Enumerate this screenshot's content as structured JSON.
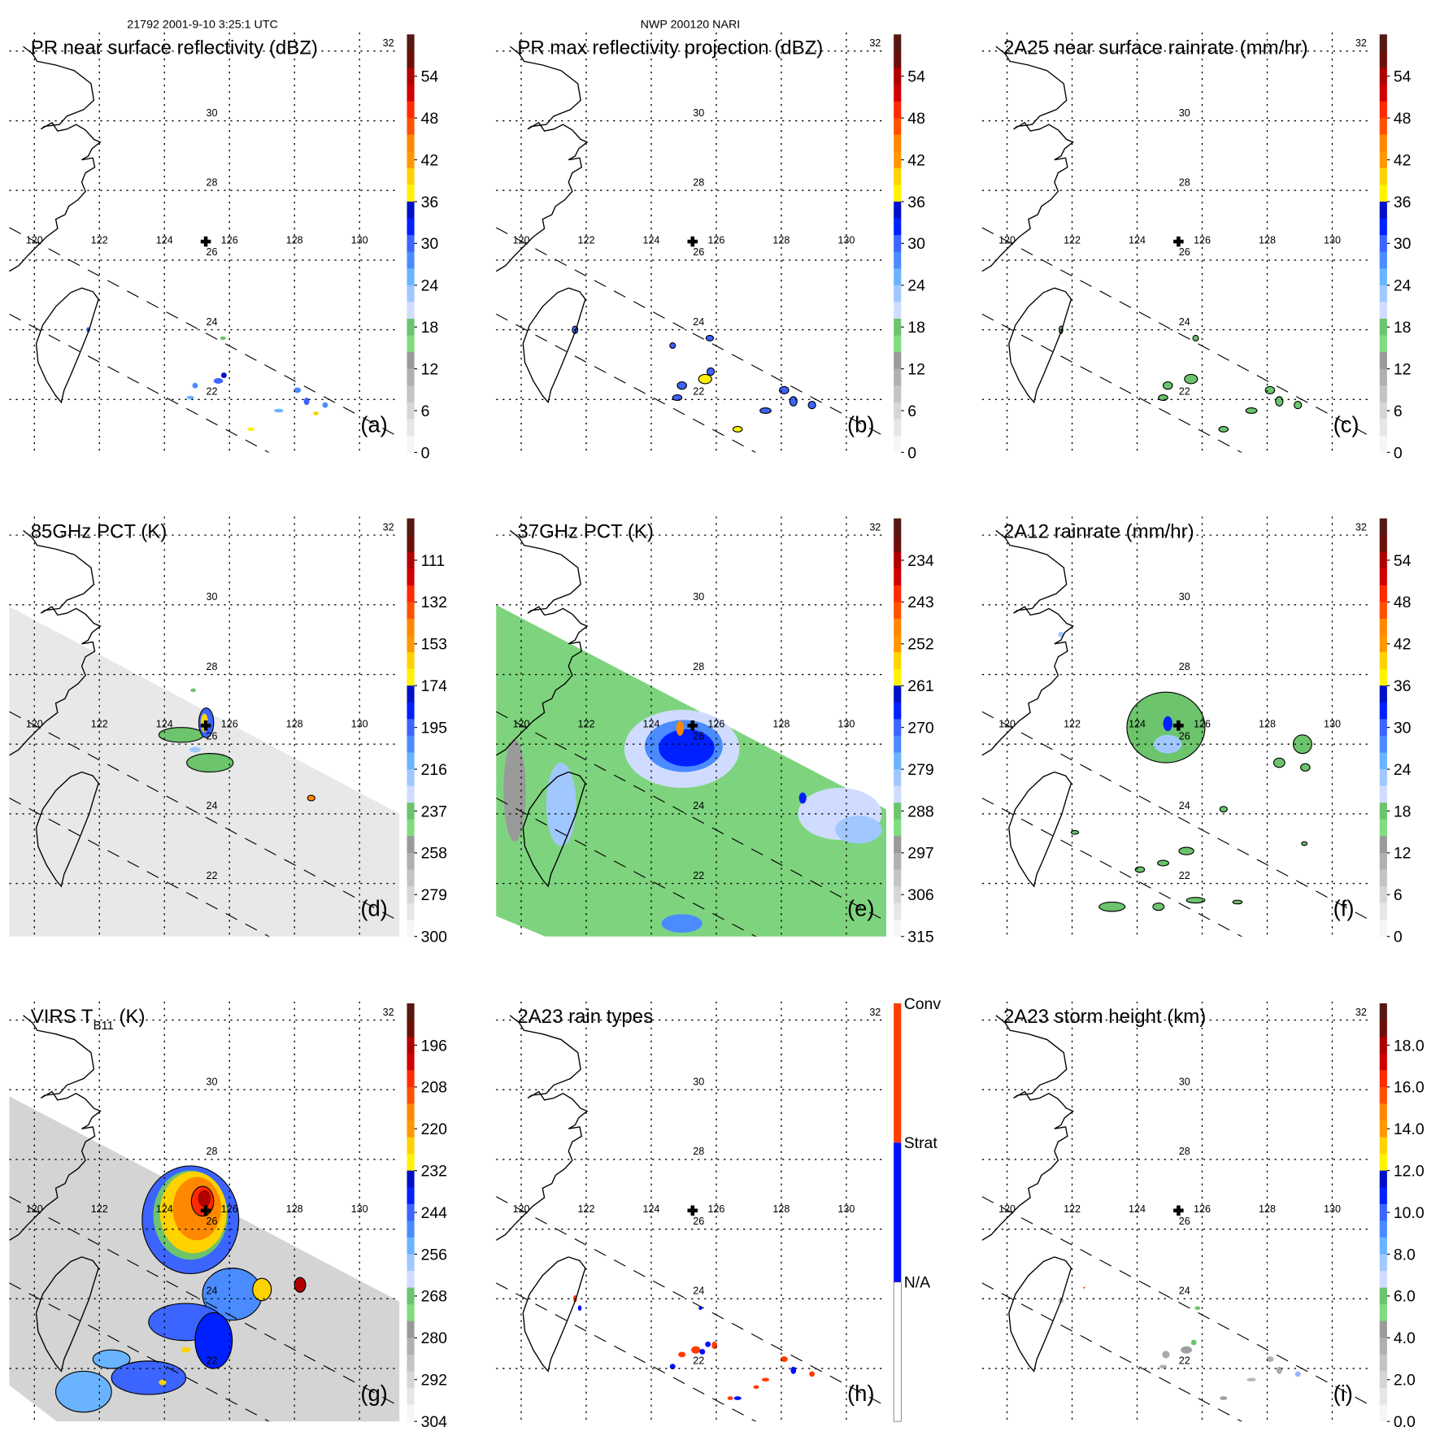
{
  "header": {
    "left": "21792 2001-9-10 3:25:1 UTC",
    "center": "NWP 200120 NARI"
  },
  "map": {
    "lon_ticks": [
      "120",
      "122",
      "124",
      "126",
      "128",
      "130"
    ],
    "lat_ticks": [
      "32",
      "30",
      "28",
      "26",
      "24",
      "22"
    ],
    "storm_center_marker": "cross-icon"
  },
  "palettes": {
    "standard": [
      "#561812",
      "#6a1008",
      "#b00000",
      "#d00000",
      "#ff2a00",
      "#ff5000",
      "#ff8800",
      "#ff9800",
      "#ffd200",
      "#fff200",
      "#0010c8",
      "#0020ff",
      "#3c64ff",
      "#4a8cff",
      "#6ab4ff",
      "#a0c8ff",
      "#d0dcff",
      "#6cc46c",
      "#80dc80",
      "#9a9a9a",
      "#b0b0b0",
      "#c4c4c4",
      "#d6d6d6",
      "#e6e6e6",
      "#f6f6f6"
    ],
    "raintype": [
      "#ff3c00",
      "#0010ff",
      "#ffffff"
    ]
  },
  "chart_data": [
    {
      "type": "heatmap",
      "id": "a",
      "title": "PR near surface reflectivity (dBZ)",
      "letter": "(a)",
      "colorbar": {
        "ticks": [
          "54",
          "48",
          "42",
          "36",
          "30",
          "24",
          "18",
          "12",
          "6",
          "0"
        ],
        "range": [
          0,
          60
        ]
      }
    },
    {
      "type": "heatmap",
      "id": "b",
      "title": "PR max reflectivity projection (dBZ)",
      "letter": "(b)",
      "colorbar": {
        "ticks": [
          "54",
          "48",
          "42",
          "36",
          "30",
          "24",
          "18",
          "12",
          "6",
          "0"
        ],
        "range": [
          0,
          60
        ]
      }
    },
    {
      "type": "heatmap",
      "id": "c",
      "title": "2A25 near surface rainrate (mm/hr)",
      "letter": "(c)",
      "colorbar": {
        "ticks": [
          "54",
          "48",
          "42",
          "36",
          "30",
          "24",
          "18",
          "12",
          "6",
          "0"
        ],
        "range": [
          0,
          60
        ]
      }
    },
    {
      "type": "heatmap",
      "id": "d",
      "title": "85GHz PCT (K)",
      "letter": "(d)",
      "colorbar": {
        "ticks": [
          "111",
          "132",
          "153",
          "174",
          "195",
          "216",
          "237",
          "258",
          "279",
          "300"
        ],
        "range": [
          90,
          300
        ]
      }
    },
    {
      "type": "heatmap",
      "id": "e",
      "title": "37GHz PCT (K)",
      "letter": "(e)",
      "colorbar": {
        "ticks": [
          "234",
          "243",
          "252",
          "261",
          "270",
          "279",
          "288",
          "297",
          "306",
          "315"
        ],
        "range": [
          225,
          315
        ]
      }
    },
    {
      "type": "heatmap",
      "id": "f",
      "title": "2A12 rainrate (mm/hr)",
      "letter": "(f)",
      "colorbar": {
        "ticks": [
          "54",
          "48",
          "42",
          "36",
          "30",
          "24",
          "18",
          "12",
          "6",
          "0"
        ],
        "range": [
          0,
          60
        ]
      }
    },
    {
      "type": "heatmap",
      "id": "g",
      "title": "VIRS T",
      "title_sub": "B11",
      "title_suffix": " (K)",
      "letter": "(g)",
      "colorbar": {
        "ticks": [
          "196",
          "208",
          "220",
          "232",
          "244",
          "256",
          "268",
          "280",
          "292",
          "304"
        ],
        "range": [
          184,
          304
        ]
      }
    },
    {
      "type": "heatmap",
      "id": "h",
      "title": "2A23 rain types",
      "letter": "(h)",
      "colorbar": {
        "categories": [
          "Conv",
          "Strat",
          "N/A"
        ]
      }
    },
    {
      "type": "heatmap",
      "id": "i",
      "title": "2A23 storm height (km)",
      "letter": "(i)",
      "colorbar": {
        "ticks": [
          "18.0",
          "16.0",
          "14.0",
          "12.0",
          "10.0",
          "8.0",
          "6.0",
          "4.0",
          "2.0",
          "0.0"
        ],
        "range": [
          0,
          20
        ]
      }
    }
  ]
}
